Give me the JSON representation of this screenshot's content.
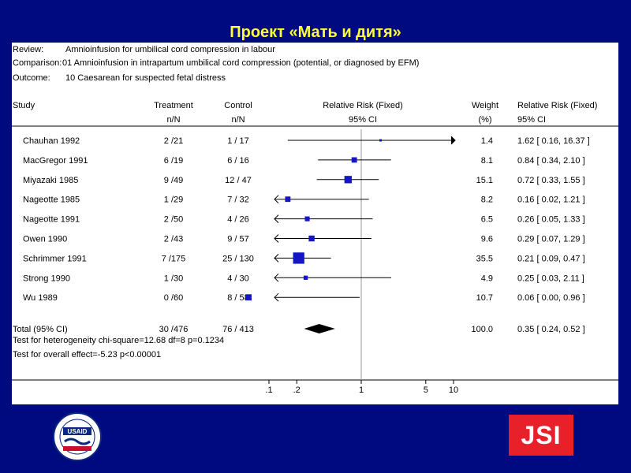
{
  "slide": {
    "title": "Проект «Мать и дитя»"
  },
  "meta": {
    "review_label": "Review:",
    "review_value": "Amnioinfusion for umbilical cord compression in labour",
    "comparison_label": "Comparison:",
    "comparison_value": "01 Amnioinfusion in intrapartum umbilical cord compression (potential, or diagnosed by EFM)",
    "outcome_label": "Outcome:",
    "outcome_value": "10 Caesarean for suspected fetal distress"
  },
  "headers": {
    "study": "Study",
    "treatment": "Treatment",
    "treatment_sub": "n/N",
    "control": "Control",
    "control_sub": "n/N",
    "rr": "Relative Risk (Fixed)",
    "rr_sub": "95% CI",
    "weight": "Weight",
    "weight_sub": "(%)",
    "rr_right": "Relative Risk (Fixed)",
    "rr_right_sub": "95% CI"
  },
  "chart_data": {
    "type": "forest",
    "x_scale": "log",
    "xlim": [
      0.1,
      10
    ],
    "x_ticks": [
      {
        "value": 0.1,
        "label": ".1"
      },
      {
        "value": 0.2,
        "label": ".2"
      },
      {
        "value": 1,
        "label": "1"
      },
      {
        "value": 5,
        "label": "5"
      },
      {
        "value": 10,
        "label": "10"
      }
    ],
    "studies": [
      {
        "name": "Chauhan 1992",
        "treatment": "2 /21",
        "control": "1 / 17",
        "weight": 1.4,
        "weight_label": "1.4",
        "rr": 1.62,
        "lo": 0.16,
        "hi": 16.37,
        "ci_label": "1.62 [ 0.16, 16.37 ]"
      },
      {
        "name": "MacGregor 1991",
        "treatment": "6 /19",
        "control": "6 / 16",
        "weight": 8.1,
        "weight_label": "8.1",
        "rr": 0.84,
        "lo": 0.34,
        "hi": 2.1,
        "ci_label": "0.84 [ 0.34, 2.10 ]"
      },
      {
        "name": "Miyazaki 1985",
        "treatment": "9 /49",
        "control": "12 / 47",
        "weight": 15.1,
        "weight_label": "15.1",
        "rr": 0.72,
        "lo": 0.33,
        "hi": 1.55,
        "ci_label": "0.72 [ 0.33, 1.55 ]"
      },
      {
        "name": "Nageotte 1985",
        "treatment": "1 /29",
        "control": "7 / 32",
        "weight": 8.2,
        "weight_label": "8.2",
        "rr": 0.16,
        "lo": 0.02,
        "hi": 1.21,
        "ci_label": "0.16 [ 0.02, 1.21 ]"
      },
      {
        "name": "Nageotte 1991",
        "treatment": "2 /50",
        "control": "4 / 26",
        "weight": 6.5,
        "weight_label": "6.5",
        "rr": 0.26,
        "lo": 0.05,
        "hi": 1.33,
        "ci_label": "0.26 [ 0.05, 1.33 ]"
      },
      {
        "name": "Owen 1990",
        "treatment": "2 /43",
        "control": "9 / 57",
        "weight": 9.6,
        "weight_label": "9.6",
        "rr": 0.29,
        "lo": 0.07,
        "hi": 1.29,
        "ci_label": "0.29 [ 0.07, 1.29 ]"
      },
      {
        "name": "Schrimmer 1991",
        "treatment": "7 /175",
        "control": "25 / 130",
        "weight": 35.5,
        "weight_label": "35.5",
        "rr": 0.21,
        "lo": 0.09,
        "hi": 0.47,
        "ci_label": "0.21 [ 0.09, 0.47 ]"
      },
      {
        "name": "Strong 1990",
        "treatment": "1 /30",
        "control": "4 / 30",
        "weight": 4.9,
        "weight_label": "4.9",
        "rr": 0.25,
        "lo": 0.03,
        "hi": 2.11,
        "ci_label": "0.25 [ 0.03, 2.11 ]"
      },
      {
        "name": "Wu 1989",
        "treatment": "0 /60",
        "control": "8 / 58",
        "weight": 10.7,
        "weight_label": "10.7",
        "rr": 0.06,
        "lo": 0.0,
        "hi": 0.96,
        "ci_label": "0.06 [ 0.00, 0.96 ]"
      }
    ],
    "total": {
      "name": "Total (95% CI)",
      "treatment": "30 /476",
      "control": "76 / 413",
      "weight": 100.0,
      "weight_label": "100.0",
      "rr": 0.35,
      "lo": 0.24,
      "hi": 0.52,
      "ci_label": "0.35 [ 0.24, 0.52 ]"
    },
    "heterogeneity": "Test for heterogeneity chi-square=12.68 df=8 p=0.1234",
    "overall_effect": "Test for overall effect=-5.23 p<0.00001"
  },
  "logos": {
    "usaid_text": "USAID",
    "jsi_text": "JSI",
    "jsi_color": "#e8202a"
  }
}
